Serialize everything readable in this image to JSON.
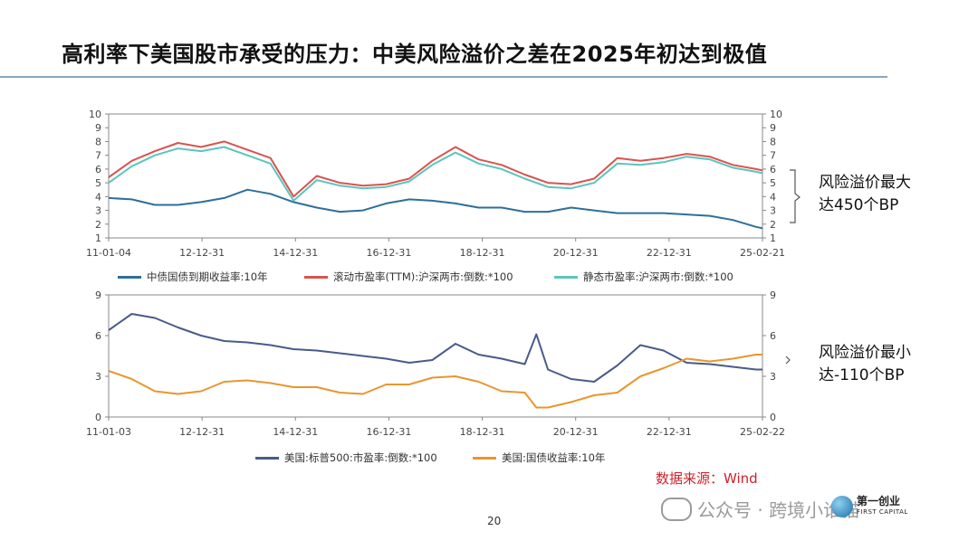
{
  "slide": {
    "title": "高利率下美国股市承受的压力：中美风险溢价之差在2025年初达到极值",
    "page_number": "20",
    "source": "数据来源：Wind",
    "watermark": "公众号 · 跨境小谁猫",
    "logo_cn": "第一创业",
    "logo_en": "FIRST CAPITAL",
    "brace_logo_icon": "globe-logo"
  },
  "notes": {
    "top_line1": "风险溢价最大",
    "top_line2": "达450个BP",
    "bottom_line1": "风险溢价最小",
    "bottom_line2": "达-110个BP"
  },
  "chart_data": [
    {
      "type": "line",
      "ylim": [
        1,
        10
      ],
      "y_ticks": [
        "1",
        "2",
        "3",
        "4",
        "5",
        "6",
        "7",
        "8",
        "9",
        "10"
      ],
      "x_ticks": [
        "11-01-04",
        "12-12-31",
        "14-12-31",
        "16-12-31",
        "18-12-31",
        "20-12-31",
        "22-12-31",
        "25-02-21"
      ],
      "x": [
        2011.0,
        2011.5,
        2012.0,
        2012.5,
        2013.0,
        2013.5,
        2014.0,
        2014.5,
        2015.0,
        2015.5,
        2016.0,
        2016.5,
        2017.0,
        2017.5,
        2018.0,
        2018.5,
        2019.0,
        2019.5,
        2020.0,
        2020.5,
        2021.0,
        2021.5,
        2022.0,
        2022.5,
        2023.0,
        2023.5,
        2024.0,
        2024.5,
        2025.0,
        2025.14
      ],
      "x_range": [
        2011.0,
        2025.14
      ],
      "series": [
        {
          "name": "中债国债到期收益率:10年",
          "color": "#2e6f9b",
          "values": [
            3.9,
            3.8,
            3.4,
            3.4,
            3.6,
            3.9,
            4.5,
            4.2,
            3.6,
            3.2,
            2.9,
            3.0,
            3.5,
            3.8,
            3.7,
            3.5,
            3.2,
            3.2,
            2.9,
            2.9,
            3.2,
            3.0,
            2.8,
            2.8,
            2.8,
            2.7,
            2.6,
            2.3,
            1.8,
            1.7
          ]
        },
        {
          "name": "滚动市盈率(TTM):沪深两市:倒数:*100",
          "color": "#d9534f",
          "values": [
            5.4,
            6.6,
            7.3,
            7.9,
            7.6,
            8.0,
            7.4,
            6.8,
            4.0,
            5.5,
            5.0,
            4.8,
            4.9,
            5.3,
            6.6,
            7.6,
            6.7,
            6.3,
            5.6,
            5.0,
            4.9,
            5.3,
            6.8,
            6.6,
            6.8,
            7.1,
            6.9,
            6.3,
            6.0,
            5.9
          ]
        },
        {
          "name": "静态市盈率:沪深两市:倒数:*100",
          "color": "#5cc4bd",
          "values": [
            5.0,
            6.2,
            7.0,
            7.5,
            7.3,
            7.6,
            7.0,
            6.4,
            3.7,
            5.2,
            4.8,
            4.6,
            4.7,
            5.1,
            6.3,
            7.2,
            6.4,
            6.0,
            5.3,
            4.7,
            4.6,
            5.0,
            6.4,
            6.3,
            6.5,
            6.9,
            6.7,
            6.1,
            5.8,
            5.7
          ]
        }
      ],
      "annotation": "风险溢价最大 达450个BP"
    },
    {
      "type": "line",
      "ylim": [
        0,
        9
      ],
      "y_ticks": [
        "0",
        "3",
        "6",
        "9"
      ],
      "x_ticks": [
        "11-01-03",
        "12-12-31",
        "14-12-31",
        "16-12-31",
        "18-12-31",
        "20-12-31",
        "22-12-31",
        "25-02-22"
      ],
      "x": [
        2011.0,
        2011.5,
        2012.0,
        2012.5,
        2013.0,
        2013.5,
        2014.0,
        2014.5,
        2015.0,
        2015.5,
        2016.0,
        2016.5,
        2017.0,
        2017.5,
        2018.0,
        2018.5,
        2019.0,
        2019.5,
        2020.0,
        2020.25,
        2020.5,
        2021.0,
        2021.5,
        2022.0,
        2022.5,
        2023.0,
        2023.5,
        2024.0,
        2024.5,
        2025.0,
        2025.14
      ],
      "x_range": [
        2011.0,
        2025.14
      ],
      "series": [
        {
          "name": "美国:标普500:市盈率:倒数:*100",
          "color": "#4a5a8a",
          "values": [
            6.4,
            7.6,
            7.3,
            6.6,
            6.0,
            5.6,
            5.5,
            5.3,
            5.0,
            4.9,
            4.7,
            4.5,
            4.3,
            4.0,
            4.2,
            5.4,
            4.6,
            4.3,
            3.9,
            6.1,
            3.5,
            2.8,
            2.6,
            3.8,
            5.3,
            4.9,
            4.0,
            3.9,
            3.7,
            3.5,
            3.5
          ]
        },
        {
          "name": "美国:国债收益率:10年",
          "color": "#e8962e",
          "values": [
            3.4,
            2.8,
            1.9,
            1.7,
            1.9,
            2.6,
            2.7,
            2.5,
            2.2,
            2.2,
            1.8,
            1.7,
            2.4,
            2.4,
            2.9,
            3.0,
            2.6,
            1.9,
            1.8,
            0.7,
            0.7,
            1.1,
            1.6,
            1.8,
            3.0,
            3.6,
            4.3,
            4.1,
            4.3,
            4.6,
            4.6
          ]
        }
      ],
      "annotation": "风险溢价最小 达-110个BP"
    }
  ]
}
